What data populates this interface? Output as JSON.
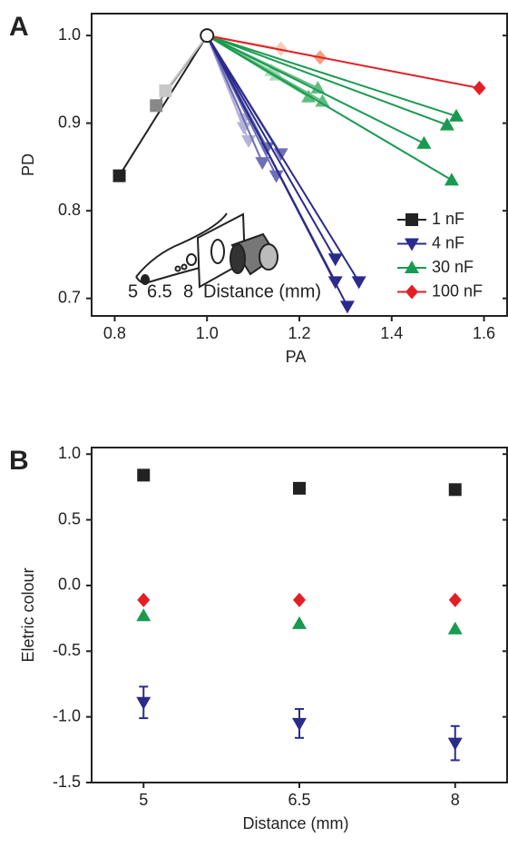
{
  "chart_data": [
    {
      "type": "scatter",
      "panel_label": "A",
      "x_label": "PA",
      "y_label": "PD",
      "xlim": [
        0.75,
        1.65
      ],
      "ylim": [
        0.68,
        1.025
      ],
      "xticks": [
        {
          "value": 0.8,
          "label": "0.8"
        },
        {
          "value": 1.0,
          "label": "1.0"
        },
        {
          "value": 1.2,
          "label": "1.2"
        },
        {
          "value": 1.4,
          "label": "1.4"
        },
        {
          "value": 1.6,
          "label": "1.6"
        }
      ],
      "yticks": [
        {
          "value": 0.7,
          "label": "0.7"
        },
        {
          "value": 0.8,
          "label": "0.8"
        },
        {
          "value": 0.9,
          "label": "0.9"
        },
        {
          "value": 1.0,
          "label": "1.0"
        }
      ],
      "origin": {
        "x": 1,
        "y": 1
      },
      "inset_labels": [
        "5",
        "6.5",
        "8"
      ],
      "inset_label_colors": [
        "#222222",
        "#888888",
        "#c8c8c8"
      ],
      "inset_title": "Distance (mm)",
      "legend": "right",
      "series": [
        {
          "name": "1 nF",
          "color": "#222222",
          "marker": "square",
          "x": [
            0.81,
            0.89,
            0.91
          ],
          "values": [
            0.84,
            0.92,
            0.937
          ],
          "point_colors": [
            "#222222",
            "#888888",
            "#c8c8c8"
          ]
        },
        {
          "name": "4 nF",
          "color": "#2b2b8c",
          "marker": "triangle-down",
          "x": [
            1.08,
            1.08,
            1.09,
            1.13,
            1.12,
            1.15,
            1.16,
            1.278,
            1.278,
            1.304,
            1.329
          ],
          "values": [
            0.895,
            0.905,
            0.88,
            0.872,
            0.855,
            0.84,
            0.865,
            0.745,
            0.719,
            0.691,
            0.719
          ],
          "point_colors": [
            "#b3b3d9",
            "#b3b3d9",
            "#b3b3d9",
            "#6f6fb8",
            "#6f6fb8",
            "#6f6fb8",
            "#6f6fb8",
            "#2b2b8c",
            "#2b2b8c",
            "#2b2b8c",
            "#2b2b8c"
          ]
        },
        {
          "name": "30 nF",
          "color": "#1a9a50",
          "marker": "triangle-up",
          "x": [
            1.15,
            1.14,
            1.24,
            1.25,
            1.22,
            1.54,
            1.52,
            1.47,
            1.53
          ],
          "values": [
            0.955,
            0.96,
            0.94,
            0.925,
            0.93,
            0.908,
            0.898,
            0.877,
            0.835
          ],
          "point_colors": [
            "#a8dcb8",
            "#a8dcb8",
            "#5fbd80",
            "#5fbd80",
            "#5fbd80",
            "#1a9a50",
            "#1a9a50",
            "#1a9a50",
            "#1a9a50"
          ]
        },
        {
          "name": "100 nF",
          "color": "#e41e26",
          "marker": "diamond",
          "x": [
            1.16,
            1.245,
            1.59
          ],
          "values": [
            0.985,
            0.975,
            0.94
          ],
          "point_colors": [
            "#f7cdb5",
            "#f0a080",
            "#e41e26"
          ]
        }
      ]
    },
    {
      "type": "scatter",
      "panel_label": "B",
      "x_label": "Distance (mm)",
      "y_label": "Eletric colour",
      "xlim": [
        4.5,
        8.5
      ],
      "ylim": [
        -1.5,
        1.05
      ],
      "xticks": [
        5,
        6.5,
        8
      ],
      "yticks": [
        {
          "value": -1.5,
          "label": "-1.5"
        },
        {
          "value": -1.0,
          "label": "-1.0"
        },
        {
          "value": -0.5,
          "label": "-0.5"
        },
        {
          "value": 0.0,
          "label": "0.0"
        },
        {
          "value": 0.5,
          "label": "0.5"
        },
        {
          "value": 1.0,
          "label": "1.0"
        }
      ],
      "series": [
        {
          "color": "#222222",
          "marker": "square",
          "x": [
            5,
            6.5,
            8
          ],
          "values": [
            0.84,
            0.74,
            0.73
          ]
        },
        {
          "color": "#e41e26",
          "marker": "diamond",
          "x": [
            5,
            6.5,
            8
          ],
          "values": [
            -0.11,
            -0.11,
            -0.11
          ]
        },
        {
          "color": "#1a9a50",
          "marker": "triangle-up",
          "x": [
            5,
            6.5,
            8
          ],
          "values": [
            -0.23,
            -0.29,
            -0.33
          ]
        },
        {
          "color": "#2b2b8c",
          "marker": "triangle-down",
          "x": [
            5,
            6.5,
            8
          ],
          "values": [
            -0.89,
            -1.05,
            -1.2
          ],
          "errors": [
            0.12,
            0.11,
            0.13
          ]
        }
      ]
    }
  ]
}
